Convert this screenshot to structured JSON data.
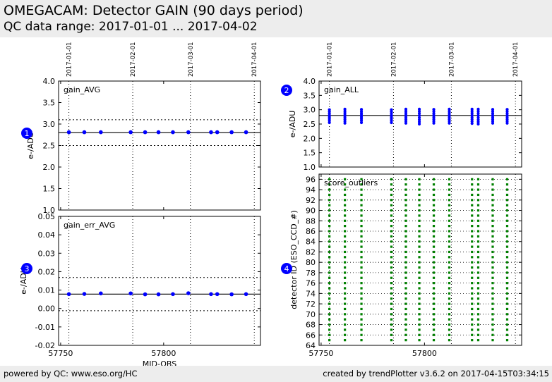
{
  "header": {
    "title": "OMEGACAM: Detector GAIN (90 days period)",
    "subtitle": "QC data range: 2017-01-01 ... 2017-04-02"
  },
  "footer": {
    "left": "powered by QC: www.eso.org/HC",
    "right": "created by trendPlotter v3.6.2 on 2017-04-15T03:34:15"
  },
  "colors": {
    "points": "#0000ff",
    "outliers": "#008000",
    "badge": "#0000ff",
    "header_bg": "#ededed"
  },
  "date_ticks": [
    "2017-01-01",
    "2017-02-01",
    "2017-03-01",
    "2017-04-01"
  ],
  "chart_data": [
    {
      "badge": "1",
      "type": "scatter",
      "label": "gain_AVG",
      "ylabel": "e-/ADU",
      "xlim": [
        57749,
        57847
      ],
      "ylim": [
        1.0,
        4.0
      ],
      "yticks": [
        "1.0",
        "1.5",
        "2.0",
        "2.5",
        "3.0",
        "3.5",
        "4.0"
      ],
      "reference_line": 2.8,
      "limit_lines": [
        2.5,
        3.1
      ],
      "x": [
        57754,
        57761.5,
        57769.5,
        57784,
        57791,
        57797.5,
        57804.5,
        57812,
        57823,
        57826,
        57833,
        57840
      ],
      "y": [
        2.81,
        2.81,
        2.81,
        2.81,
        2.81,
        2.81,
        2.81,
        2.81,
        2.81,
        2.81,
        2.81,
        2.81
      ]
    },
    {
      "badge": "3",
      "type": "scatter",
      "label": "gain_err_AVG",
      "ylabel": "e-/ADU",
      "xlabel": "MJD-OBS",
      "xticks": [
        "57750",
        "57800"
      ],
      "xlim": [
        57749,
        57847
      ],
      "ylim": [
        -0.02,
        0.05
      ],
      "yticks": [
        "-0.02",
        "-0.01",
        "0.00",
        "0.01",
        "0.02",
        "0.03",
        "0.04",
        "0.05"
      ],
      "reference_line": 0.0078,
      "limit_lines": [
        -0.0012,
        0.0168
      ],
      "x": [
        57754,
        57761.5,
        57769.5,
        57784,
        57791,
        57797.5,
        57804.5,
        57812,
        57823,
        57826,
        57833,
        57840
      ],
      "y": [
        0.0078,
        0.0079,
        0.0082,
        0.0082,
        0.0077,
        0.0077,
        0.0078,
        0.0083,
        0.0078,
        0.0078,
        0.0077,
        0.0078
      ]
    },
    {
      "badge": "2",
      "type": "scatter",
      "label": "gain_ALL",
      "ylabel": "e-/ADU",
      "xlim": [
        57749,
        57847
      ],
      "ylim": [
        1.0,
        4.0
      ],
      "yticks": [
        "1.0",
        "1.5",
        "2.0",
        "2.5",
        "3.0",
        "3.5",
        "4.0"
      ],
      "reference_line": 2.8,
      "x": [
        57754,
        57761.5,
        57769.5,
        57784,
        57791,
        57797.5,
        57804.5,
        57812,
        57823,
        57826,
        57833,
        57840
      ],
      "y_min": [
        2.55,
        2.53,
        2.55,
        2.55,
        2.53,
        2.5,
        2.53,
        2.53,
        2.52,
        2.5,
        2.53,
        2.53
      ],
      "y_max": [
        3.0,
        3.02,
        3.01,
        3.0,
        3.02,
        3.02,
        3.01,
        3.02,
        3.02,
        3.02,
        3.01,
        3.01
      ]
    },
    {
      "badge": "4",
      "type": "scatter",
      "label": "score_outliers",
      "ylabel": "detector ID (ESO_CCD_#)",
      "xlabel": "",
      "xticks": [
        "57750",
        "57800"
      ],
      "xlim": [
        57749,
        57847
      ],
      "ylim": [
        64,
        97
      ],
      "yticks": [
        "64",
        "66",
        "68",
        "70",
        "72",
        "74",
        "76",
        "78",
        "80",
        "82",
        "84",
        "86",
        "88",
        "90",
        "92",
        "94",
        "96"
      ],
      "x": [
        57754,
        57761.5,
        57769.5,
        57784,
        57791,
        57797.5,
        57804.5,
        57812,
        57823,
        57826,
        57833,
        57840
      ],
      "detector_range": [
        65,
        96
      ]
    }
  ]
}
